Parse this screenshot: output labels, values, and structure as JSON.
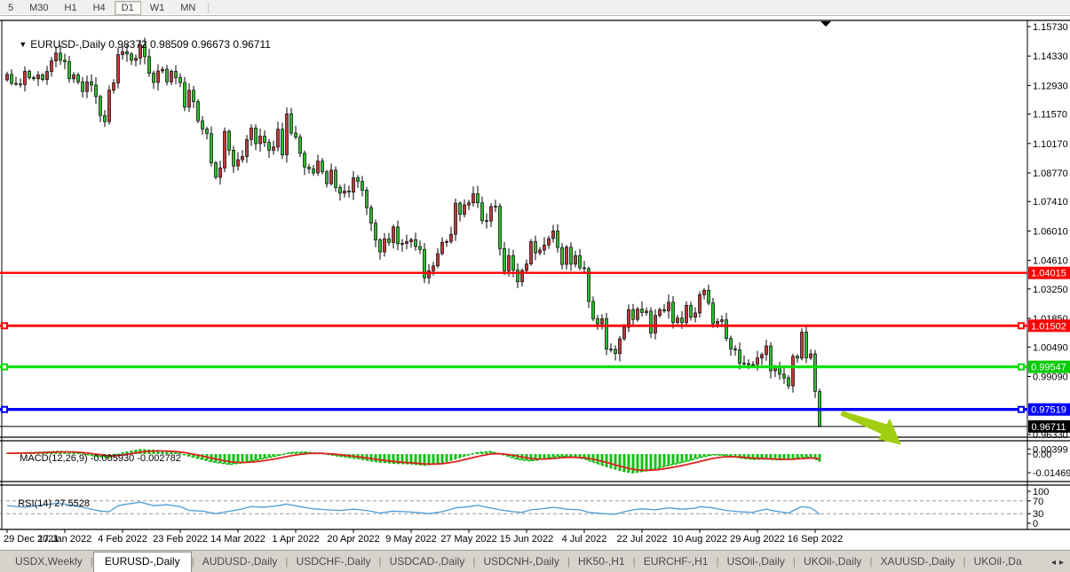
{
  "toolbar": {
    "buttons": [
      "5",
      "M30",
      "H1",
      "H4",
      "D1",
      "W1",
      "MN"
    ],
    "active": "D1"
  },
  "chart": {
    "title": "EURUSD-,Daily",
    "quote": "0.98372 0.98509 0.96673 0.96711"
  },
  "price_axis": {
    "ticks": [
      1.1573,
      1.1433,
      1.1293,
      1.1157,
      1.1017,
      1.0877,
      1.0741,
      1.0601,
      1.0461,
      1.0325,
      1.0185,
      1.0049,
      0.9909,
      0.9633
    ]
  },
  "hlines": [
    {
      "price": 1.04015,
      "label": "1.04015",
      "color": "#ff0000",
      "width": 2.4,
      "handles": false
    },
    {
      "price": 1.01502,
      "label": "1.01502",
      "color": "#ff0000",
      "width": 2.8,
      "handles": true
    },
    {
      "price": 0.99547,
      "label": "0.99547",
      "color": "#00e000",
      "width": 3.2,
      "handles": true
    },
    {
      "price": 0.97519,
      "label": "0.97519",
      "color": "#0000ff",
      "width": 3.4,
      "handles": true
    }
  ],
  "current_price": {
    "value": 0.96711,
    "label": "0.96711",
    "color": "#000000"
  },
  "indicators": {
    "macd": {
      "name": "MACD(12,26,9)",
      "values": "-0.005930 -0.002782",
      "axis": [
        {
          "v": 0.00399,
          "label": "0.00399"
        },
        {
          "v": 0,
          "label": "0.00"
        },
        {
          "v": -0.014695,
          "label": "-0.014695"
        }
      ]
    },
    "rsi": {
      "name": "RSI(14)",
      "value": "27.5528",
      "axis": [
        {
          "v": 100,
          "label": "100"
        },
        {
          "v": 70,
          "label": "70"
        },
        {
          "v": 30,
          "label": "30"
        },
        {
          "v": 0,
          "label": "0"
        }
      ],
      "levels": [
        70,
        30
      ]
    }
  },
  "date_axis": [
    "29 Dec 2021",
    "17 Jan 2022",
    "4 Feb 2022",
    "23 Feb 2022",
    "14 Mar 2022",
    "1 Apr 2022",
    "20 Apr 2022",
    "9 May 2022",
    "27 May 2022",
    "15 Jun 2022",
    "4 Jul 2022",
    "22 Jul 2022",
    "10 Aug 2022",
    "29 Aug 2022",
    "16 Sep 2022"
  ],
  "tabs": {
    "items": [
      "USDX,Weekly",
      "EURUSD-,Daily",
      "AUDUSD-,Daily",
      "USDCHF-,Daily",
      "USDCAD-,Daily",
      "USDCNH-,Daily",
      "HK50-,H1",
      "EURCHF-,H1",
      "USOil-,Daily",
      "UKOil-,Daily",
      "XAUUSD-,Daily",
      "UKOil-,Da"
    ],
    "active_index": 1,
    "scroll_left": "◂",
    "scroll_right": "▸"
  },
  "colors": {
    "bull_candle": "#c03a3a",
    "bear_candle": "#2ebe2e",
    "wick": "#000000",
    "macd_hist": "#12c112",
    "macd_line": "#00b400",
    "macd_signal": "#dd2222",
    "rsi_line": "#4d9bd5",
    "level_dash": "#999999",
    "arrow": "#a2ce11"
  },
  "chart_data": {
    "type": "candlestick",
    "symbol": "EURUSD-",
    "timeframe": "Daily",
    "ylim": [
      0.9633,
      1.1573
    ],
    "x_labels": [
      "29 Dec 2021",
      "17 Jan 2022",
      "4 Feb 2022",
      "23 Feb 2022",
      "14 Mar 2022",
      "1 Apr 2022",
      "20 Apr 2022",
      "9 May 2022",
      "27 May 2022",
      "15 Jun 2022",
      "4 Jul 2022",
      "22 Jul 2022",
      "10 Aug 2022",
      "29 Aug 2022",
      "16 Sep 2022"
    ],
    "first_open": 1.132,
    "closes": [
      1.1346,
      1.1303,
      1.13,
      1.1297,
      1.136,
      1.133,
      1.1325,
      1.1343,
      1.1321,
      1.136,
      1.141,
      1.1447,
      1.1413,
      1.1406,
      1.1325,
      1.1343,
      1.131,
      1.1264,
      1.131,
      1.1295,
      1.124,
      1.115,
      1.1121,
      1.1271,
      1.1305,
      1.144,
      1.1453,
      1.1443,
      1.1413,
      1.1423,
      1.1486,
      1.143,
      1.1351,
      1.1307,
      1.1362,
      1.137,
      1.131,
      1.136,
      1.133,
      1.1307,
      1.119,
      1.127,
      1.1216,
      1.1125,
      1.1086,
      1.1064,
      1.0925,
      1.0856,
      1.0901,
      1.1075,
      1.0985,
      1.091,
      1.094,
      1.0955,
      1.1036,
      1.109,
      1.1016,
      1.1052,
      1.1022,
      1.0985,
      1.1,
      1.1085,
      1.0963,
      1.1158,
      1.1067,
      1.1048,
      1.097,
      1.0905,
      1.0896,
      1.0877,
      1.0933,
      1.0882,
      1.0826,
      1.089,
      1.0808,
      1.0781,
      1.0791,
      1.0786,
      1.0854,
      1.0837,
      1.0795,
      1.0712,
      1.0638,
      1.0558,
      1.0501,
      1.0563,
      1.0546,
      1.062,
      1.054,
      1.0542,
      1.055,
      1.056,
      1.0527,
      1.0513,
      1.0378,
      1.0412,
      1.0435,
      1.0493,
      1.0547,
      1.0551,
      1.0585,
      1.0733,
      1.068,
      1.0725,
      1.0735,
      1.0778,
      1.0735,
      1.065,
      1.0648,
      1.0717,
      1.0719,
      1.0517,
      1.0411,
      1.0484,
      1.0415,
      1.0359,
      1.0413,
      1.0444,
      1.055,
      1.0497,
      1.051,
      1.0534,
      1.0565,
      1.0601,
      1.0522,
      1.0442,
      1.0524,
      1.0443,
      1.0484,
      1.0426,
      1.0422,
      1.0266,
      1.0183,
      1.016,
      1.0183,
      1.0039,
      1.0038,
      1.0018,
      1.0088,
      1.0143,
      1.0227,
      1.018,
      1.0229,
      1.0213,
      1.022,
      1.0115,
      1.0199,
      1.0227,
      1.0221,
      1.0262,
      1.0166,
      1.0187,
      1.0165,
      1.0247,
      1.0191,
      1.0211,
      1.0298,
      1.0319,
      1.0258,
      1.016,
      1.0171,
      1.0178,
      1.009,
      1.004,
      1.0035,
      0.9972,
      0.997,
      0.9965,
      0.9966,
      0.9997,
      1.0013,
      1.0054,
      0.9936,
      0.9954,
      0.992,
      0.9902,
      0.9864,
      1.0005,
      0.9996,
      1.012,
      0.9998,
      1.0016,
      0.9838,
      0.9671
    ],
    "last_bar": {
      "open": 0.98372,
      "high": 0.98509,
      "low": 0.96673,
      "close": 0.96711
    },
    "hlines": [
      1.04015,
      1.01502,
      0.99547,
      0.97519
    ],
    "macd": {
      "last_macd": -0.00593,
      "last_signal": -0.002782,
      "anchors": [
        [
          0,
          0.0006
        ],
        [
          6,
          0.0012
        ],
        [
          12,
          0.0022
        ],
        [
          16,
          0.001
        ],
        [
          20,
          -0.0018
        ],
        [
          23,
          -0.0028
        ],
        [
          26,
          0.001
        ],
        [
          30,
          0.0035
        ],
        [
          34,
          0.0028
        ],
        [
          38,
          0.0012
        ],
        [
          42,
          -0.0025
        ],
        [
          46,
          -0.006
        ],
        [
          50,
          -0.0082
        ],
        [
          53,
          -0.007
        ],
        [
          57,
          -0.0042
        ],
        [
          61,
          -0.0012
        ],
        [
          64,
          0.0012
        ],
        [
          67,
          0.0016
        ],
        [
          71,
          0.0004
        ],
        [
          75,
          -0.0018
        ],
        [
          79,
          -0.0036
        ],
        [
          83,
          -0.006
        ],
        [
          87,
          -0.0072
        ],
        [
          91,
          -0.0078
        ],
        [
          94,
          -0.0088
        ],
        [
          97,
          -0.0075
        ],
        [
          100,
          -0.0048
        ],
        [
          103,
          -0.0015
        ],
        [
          106,
          0.0012
        ],
        [
          109,
          0.002
        ],
        [
          112,
          -0.0008
        ],
        [
          115,
          -0.0042
        ],
        [
          118,
          -0.0055
        ],
        [
          121,
          -0.0038
        ],
        [
          124,
          -0.0019
        ],
        [
          127,
          -0.0021
        ],
        [
          130,
          -0.0038
        ],
        [
          133,
          -0.0075
        ],
        [
          136,
          -0.011
        ],
        [
          139,
          -0.0138
        ],
        [
          141,
          -0.0147
        ],
        [
          144,
          -0.0132
        ],
        [
          147,
          -0.0108
        ],
        [
          150,
          -0.0082
        ],
        [
          153,
          -0.0058
        ],
        [
          156,
          -0.0028
        ],
        [
          159,
          -0.0006
        ],
        [
          162,
          -0.0012
        ],
        [
          165,
          -0.003
        ],
        [
          168,
          -0.0042
        ],
        [
          171,
          -0.004
        ],
        [
          174,
          -0.0046
        ],
        [
          177,
          -0.0038
        ],
        [
          179,
          -0.0026
        ],
        [
          181,
          -0.0024
        ],
        [
          182,
          -0.0038
        ],
        [
          183,
          -0.0059
        ]
      ]
    },
    "rsi": {
      "last": 27.5528,
      "anchors": [
        [
          0,
          55
        ],
        [
          4,
          50
        ],
        [
          8,
          57
        ],
        [
          11,
          62
        ],
        [
          13,
          60
        ],
        [
          17,
          50
        ],
        [
          21,
          38
        ],
        [
          23,
          36
        ],
        [
          25,
          55
        ],
        [
          27,
          60
        ],
        [
          30,
          66
        ],
        [
          33,
          55
        ],
        [
          36,
          58
        ],
        [
          39,
          52
        ],
        [
          41,
          40
        ],
        [
          44,
          38
        ],
        [
          47,
          30
        ],
        [
          49,
          35
        ],
        [
          52,
          42
        ],
        [
          55,
          52
        ],
        [
          58,
          50
        ],
        [
          61,
          55
        ],
        [
          63,
          60
        ],
        [
          66,
          52
        ],
        [
          69,
          45
        ],
        [
          72,
          42
        ],
        [
          75,
          40
        ],
        [
          78,
          44
        ],
        [
          81,
          40
        ],
        [
          84,
          32
        ],
        [
          87,
          38
        ],
        [
          90,
          36
        ],
        [
          93,
          33
        ],
        [
          95,
          30
        ],
        [
          98,
          36
        ],
        [
          101,
          48
        ],
        [
          104,
          52
        ],
        [
          106,
          56
        ],
        [
          108,
          50
        ],
        [
          111,
          42
        ],
        [
          114,
          36
        ],
        [
          116,
          34
        ],
        [
          118,
          42
        ],
        [
          121,
          46
        ],
        [
          123,
          50
        ],
        [
          126,
          44
        ],
        [
          129,
          42
        ],
        [
          131,
          34
        ],
        [
          134,
          30
        ],
        [
          137,
          28
        ],
        [
          139,
          36
        ],
        [
          141,
          42
        ],
        [
          143,
          45
        ],
        [
          146,
          42
        ],
        [
          149,
          48
        ],
        [
          152,
          44
        ],
        [
          155,
          47
        ],
        [
          156,
          52
        ],
        [
          159,
          48
        ],
        [
          162,
          40
        ],
        [
          165,
          36
        ],
        [
          168,
          34
        ],
        [
          169,
          38
        ],
        [
          171,
          44
        ],
        [
          173,
          38
        ],
        [
          176,
          32
        ],
        [
          178,
          46
        ],
        [
          179,
          52
        ],
        [
          181,
          48
        ],
        [
          182,
          40
        ],
        [
          183,
          27.55
        ]
      ]
    }
  }
}
